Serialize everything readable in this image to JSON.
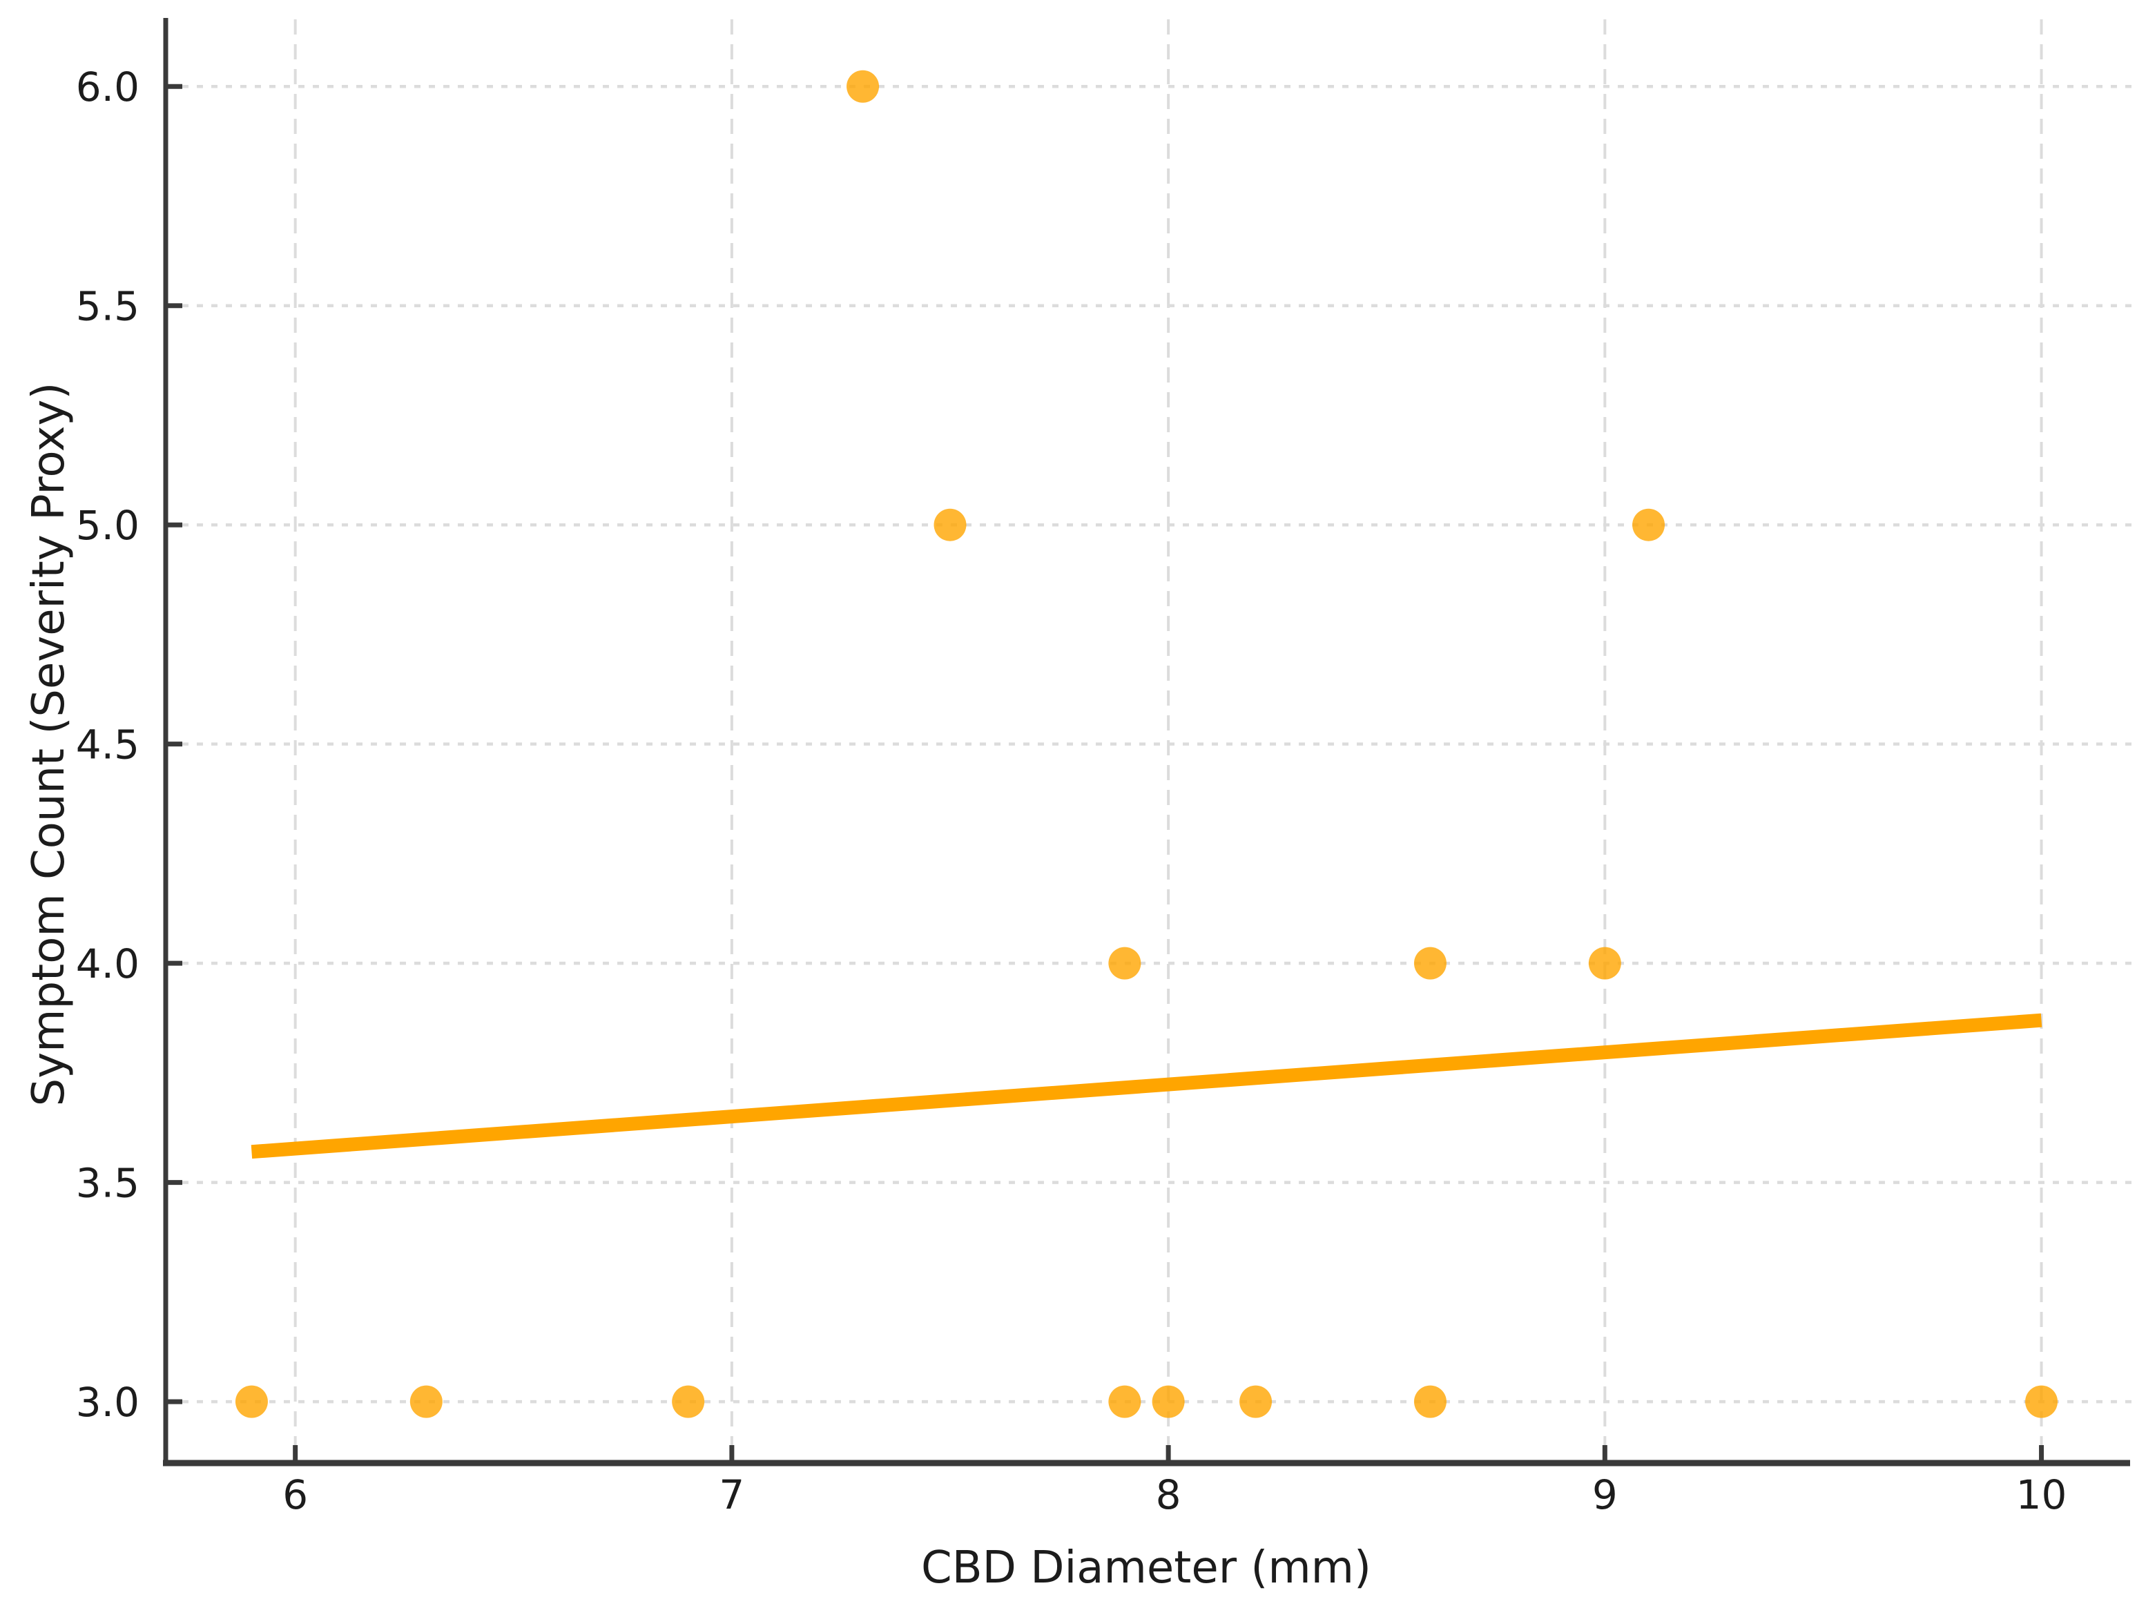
{
  "chart_data": {
    "type": "scatter",
    "title": "",
    "xlabel": "CBD Diameter (mm)",
    "ylabel": "Symptom Count (Severity Proxy)",
    "xlim": [
      5.7,
      10.2
    ],
    "ylim": [
      2.86,
      6.15
    ],
    "x_ticks": [
      6,
      7,
      8,
      9,
      10
    ],
    "x_tick_labels": [
      "6",
      "7",
      "8",
      "9",
      "10"
    ],
    "y_ticks": [
      3.0,
      3.5,
      4.0,
      4.5,
      5.0,
      5.5,
      6.0
    ],
    "y_tick_labels": [
      "3.0",
      "3.5",
      "4.0",
      "4.5",
      "5.0",
      "5.5",
      "6.0"
    ],
    "grid": true,
    "legend": "none",
    "points": [
      {
        "x": 5.9,
        "y": 3.0
      },
      {
        "x": 6.3,
        "y": 3.0
      },
      {
        "x": 6.9,
        "y": 3.0
      },
      {
        "x": 7.3,
        "y": 6.0
      },
      {
        "x": 7.5,
        "y": 5.0
      },
      {
        "x": 7.9,
        "y": 4.0
      },
      {
        "x": 7.9,
        "y": 3.0
      },
      {
        "x": 8.0,
        "y": 3.0
      },
      {
        "x": 8.2,
        "y": 3.0
      },
      {
        "x": 8.6,
        "y": 4.0
      },
      {
        "x": 8.6,
        "y": 3.0
      },
      {
        "x": 9.0,
        "y": 4.0
      },
      {
        "x": 9.1,
        "y": 5.0
      },
      {
        "x": 10.0,
        "y": 3.0
      }
    ],
    "trendline": {
      "x1": 5.9,
      "y1": 3.57,
      "x2": 10.0,
      "y2": 3.87
    },
    "colors": {
      "point": "#FFA500",
      "trend": "#FFA500",
      "grid": "#DCDCDC",
      "spine": "#3A3A3A",
      "text": "#1C1C1C"
    }
  }
}
